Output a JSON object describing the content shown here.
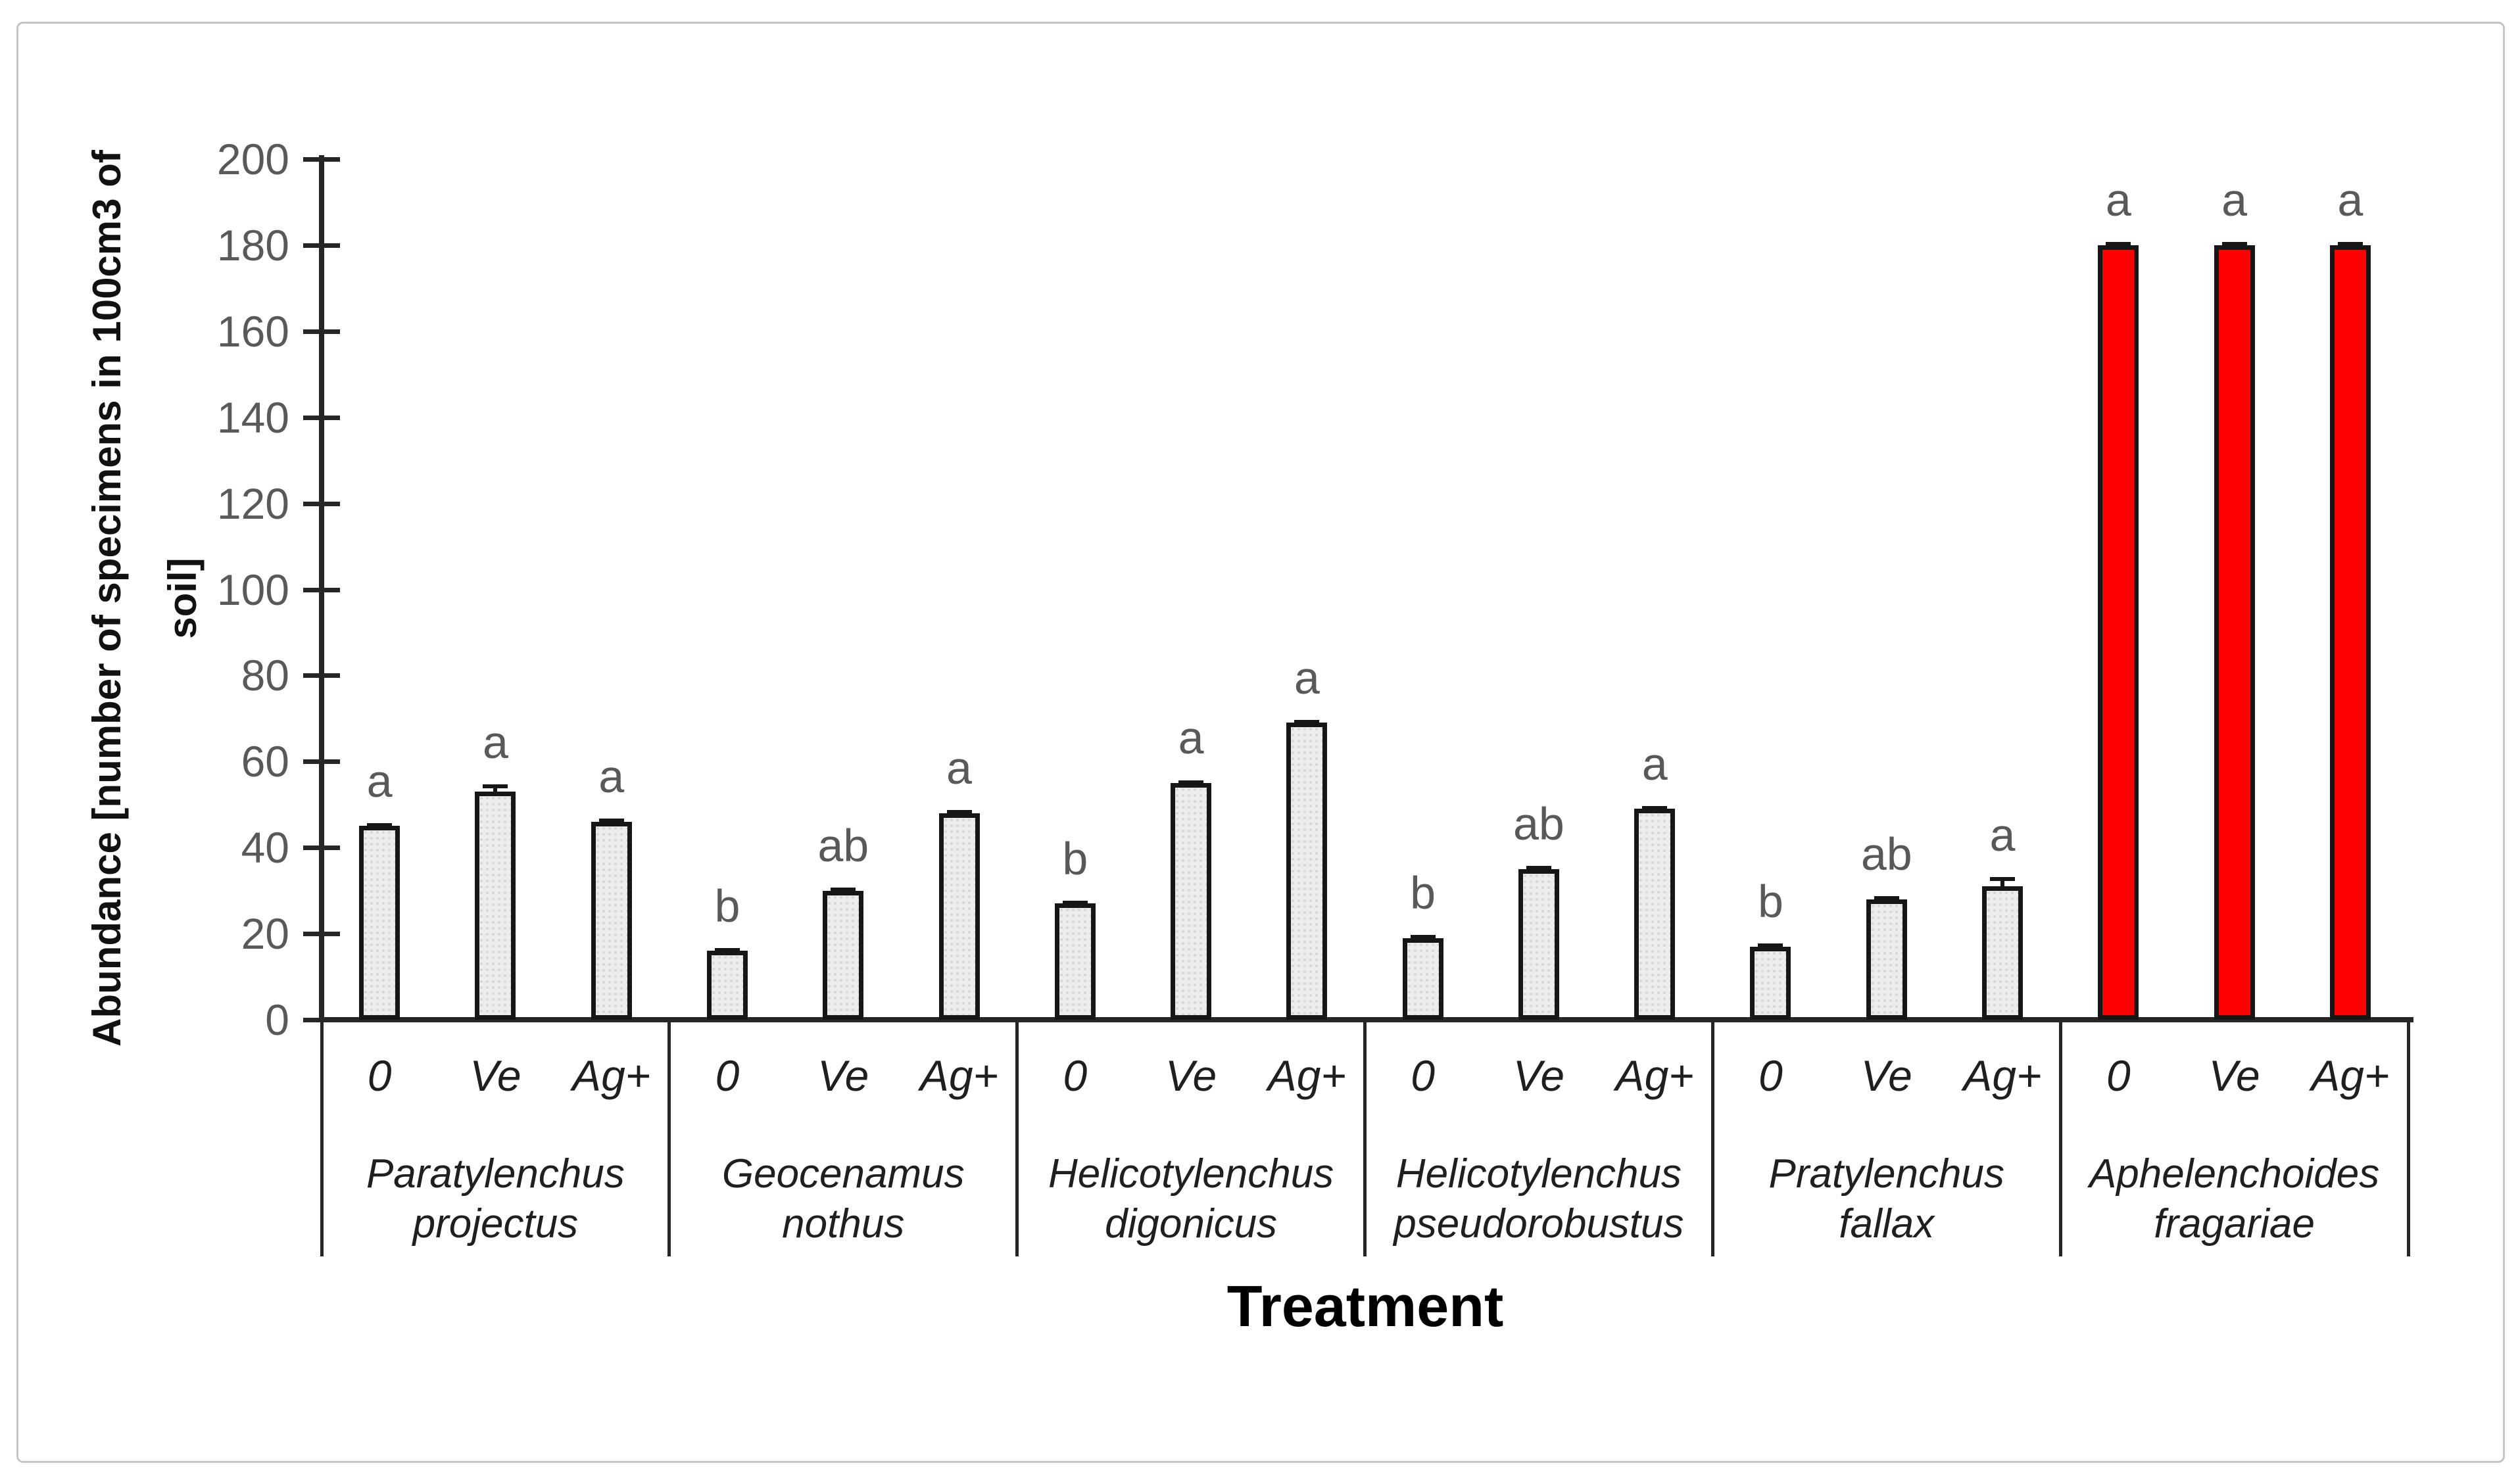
{
  "figure": {
    "y_axis_title": "Abundance [number of specimens in  100cm3 of soil]",
    "y_axis_title_lines": [
      "Abundance [number of specimens in  100cm3 of",
      "soil]"
    ],
    "x_axis_title": "Treatment"
  },
  "chart_data": {
    "type": "bar",
    "title": "",
    "xlabel": "Treatment",
    "ylabel": "Abundance [number of specimens in  100cm3 of soil]",
    "ylim": [
      0,
      200
    ],
    "ytick_step": 20,
    "yticks": [
      "0",
      "20",
      "40",
      "60",
      "80",
      "100",
      "120",
      "140",
      "160",
      "180",
      "200"
    ],
    "grid": "off",
    "legend": "none",
    "error_bars": true,
    "groups": [
      {
        "species": "Paratylenchus projectus",
        "treatments": [
          "0",
          "Ve",
          "Ag+"
        ],
        "values": [
          45,
          53,
          46
        ],
        "errors": [
          1,
          2,
          1
        ],
        "letters": [
          "a",
          "a",
          "a"
        ],
        "highlight": false
      },
      {
        "species": "Geocenamus nothus",
        "treatments": [
          "0",
          "Ve",
          "Ag+"
        ],
        "values": [
          16,
          30,
          48
        ],
        "errors": [
          1,
          1,
          1
        ],
        "letters": [
          "b",
          "ab",
          "a"
        ],
        "highlight": false
      },
      {
        "species": "Helicotylenchus digonicus",
        "treatments": [
          "0",
          "Ve",
          "Ag+"
        ],
        "values": [
          27,
          55,
          69
        ],
        "errors": [
          1,
          1,
          1
        ],
        "letters": [
          "b",
          "a",
          "a"
        ],
        "highlight": false
      },
      {
        "species": "Helicotylenchus pseudorobustus",
        "treatments": [
          "0",
          "Ve",
          "Ag+"
        ],
        "values": [
          19,
          35,
          49
        ],
        "errors": [
          1,
          1,
          1
        ],
        "letters": [
          "b",
          "ab",
          "a"
        ],
        "highlight": false
      },
      {
        "species": "Pratylenchus fallax",
        "treatments": [
          "0",
          "Ve",
          "Ag+"
        ],
        "values": [
          17,
          28,
          31
        ],
        "errors": [
          1,
          1,
          2.5
        ],
        "letters": [
          "b",
          "ab",
          "a"
        ],
        "highlight": false
      },
      {
        "species": "Aphelenchoides fragariae",
        "treatments": [
          "0",
          "Ve",
          "Ag+"
        ],
        "values": [
          180,
          180,
          180
        ],
        "errors": [
          1,
          1,
          1
        ],
        "letters": [
          "a",
          "a",
          "a"
        ],
        "highlight": true
      }
    ],
    "colors": {
      "bar_fill": "#ececec",
      "bar_highlight": "#fe0000",
      "bar_outline": "#161616",
      "axis": "#262626",
      "tick_label": "#595959",
      "significance_letter": "#595959"
    }
  }
}
